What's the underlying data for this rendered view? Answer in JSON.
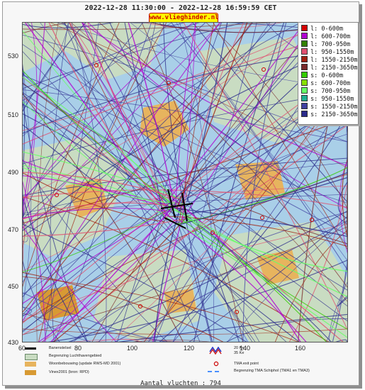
{
  "header": {
    "title": "2022-12-28 11:30:00 - 2022-12-28 16:59:59 CET",
    "site": "www.vlieghinder.nl"
  },
  "axes": {
    "x_ticks": [
      "60",
      "80",
      "100",
      "120",
      "140",
      "160"
    ],
    "y_ticks": [
      "530",
      "510",
      "490",
      "470",
      "450",
      "430"
    ]
  },
  "legend": {
    "items": [
      {
        "label": "l: 0-600m",
        "color": "#d40000"
      },
      {
        "label": "l: 600-700m",
        "color": "#b000d0"
      },
      {
        "label": "l: 700-950m",
        "color": "#338000"
      },
      {
        "label": "l: 950-1550m",
        "color": "#e05070"
      },
      {
        "label": "l: 1550-2150m",
        "color": "#a02010"
      },
      {
        "label": "l: 2150-3650m",
        "color": "#7a2a2a"
      },
      {
        "label": "s: 0-600m",
        "color": "#33cc00"
      },
      {
        "label": "s: 600-700m",
        "color": "#88e000"
      },
      {
        "label": "s: 700-950m",
        "color": "#66ff66"
      },
      {
        "label": "s: 950-1550m",
        "color": "#20b090"
      },
      {
        "label": "s: 1550-2150m",
        "color": "#4040a0"
      },
      {
        "label": "s: 2150-3650m",
        "color": "#2a2a8a"
      }
    ]
  },
  "map_legend": {
    "runway": "Banenstelsel",
    "airport_boundary": "Begrenzing Luchthavengebied",
    "housing": "Woonbebouwing (update RWS-MD 2001)",
    "vinex": "Vinex2001 (bron: RPD)",
    "kw35": "35 Ke",
    "kw20": "20 Ke",
    "tma_exit": "TMA exit point",
    "tma_boundary": "Begrenzing TMA Schiphol  (TMA1 en TMA3)"
  },
  "footer": {
    "count_label": "Aantal vluchten : 794"
  },
  "colors": {
    "map_bg": "#a9cfe8",
    "land_green": "#c9dcc2",
    "housing": "#e7b45e",
    "vinex": "#d89a33",
    "track_dark": "#2a2a8a",
    "track_red": "#a02010",
    "track_purple": "#b000d0"
  }
}
